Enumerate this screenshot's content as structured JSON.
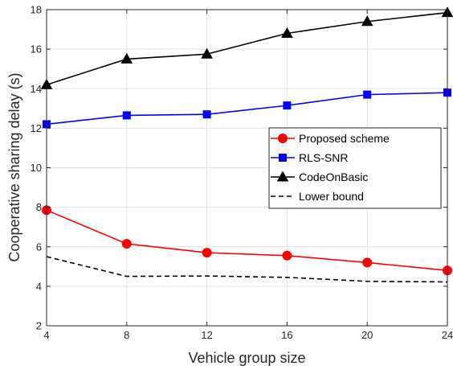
{
  "chart_data": {
    "type": "line",
    "title": "",
    "xlabel": "Vehicle group size",
    "ylabel": "Cooperative sharing delay (s)",
    "x": [
      4,
      8,
      12,
      16,
      20,
      24
    ],
    "xlim": [
      4,
      24
    ],
    "ylim": [
      2,
      18
    ],
    "xticks": [
      "4",
      "8",
      "12",
      "16",
      "20",
      "24"
    ],
    "yticks": [
      "2",
      "4",
      "6",
      "8",
      "10",
      "12",
      "14",
      "16",
      "18"
    ],
    "grid": true,
    "legend_position": "center-right",
    "series": [
      {
        "name": "Proposed scheme",
        "values": [
          7.85,
          6.15,
          5.7,
          5.55,
          5.2,
          4.8
        ],
        "color": "#ff0000",
        "marker": "circle",
        "line": "solid"
      },
      {
        "name": "RLS-SNR",
        "values": [
          12.2,
          12.65,
          12.7,
          13.15,
          13.7,
          13.8
        ],
        "color": "#0000ff",
        "marker": "square",
        "line": "solid"
      },
      {
        "name": "CodeOnBasic",
        "values": [
          14.2,
          15.5,
          15.75,
          16.8,
          17.4,
          17.85
        ],
        "color": "#000000",
        "marker": "triangle",
        "line": "solid"
      },
      {
        "name": "Lower bound",
        "values": [
          5.5,
          4.5,
          4.52,
          4.45,
          4.25,
          4.22
        ],
        "color": "#000000",
        "marker": "none",
        "line": "dashed"
      }
    ]
  }
}
